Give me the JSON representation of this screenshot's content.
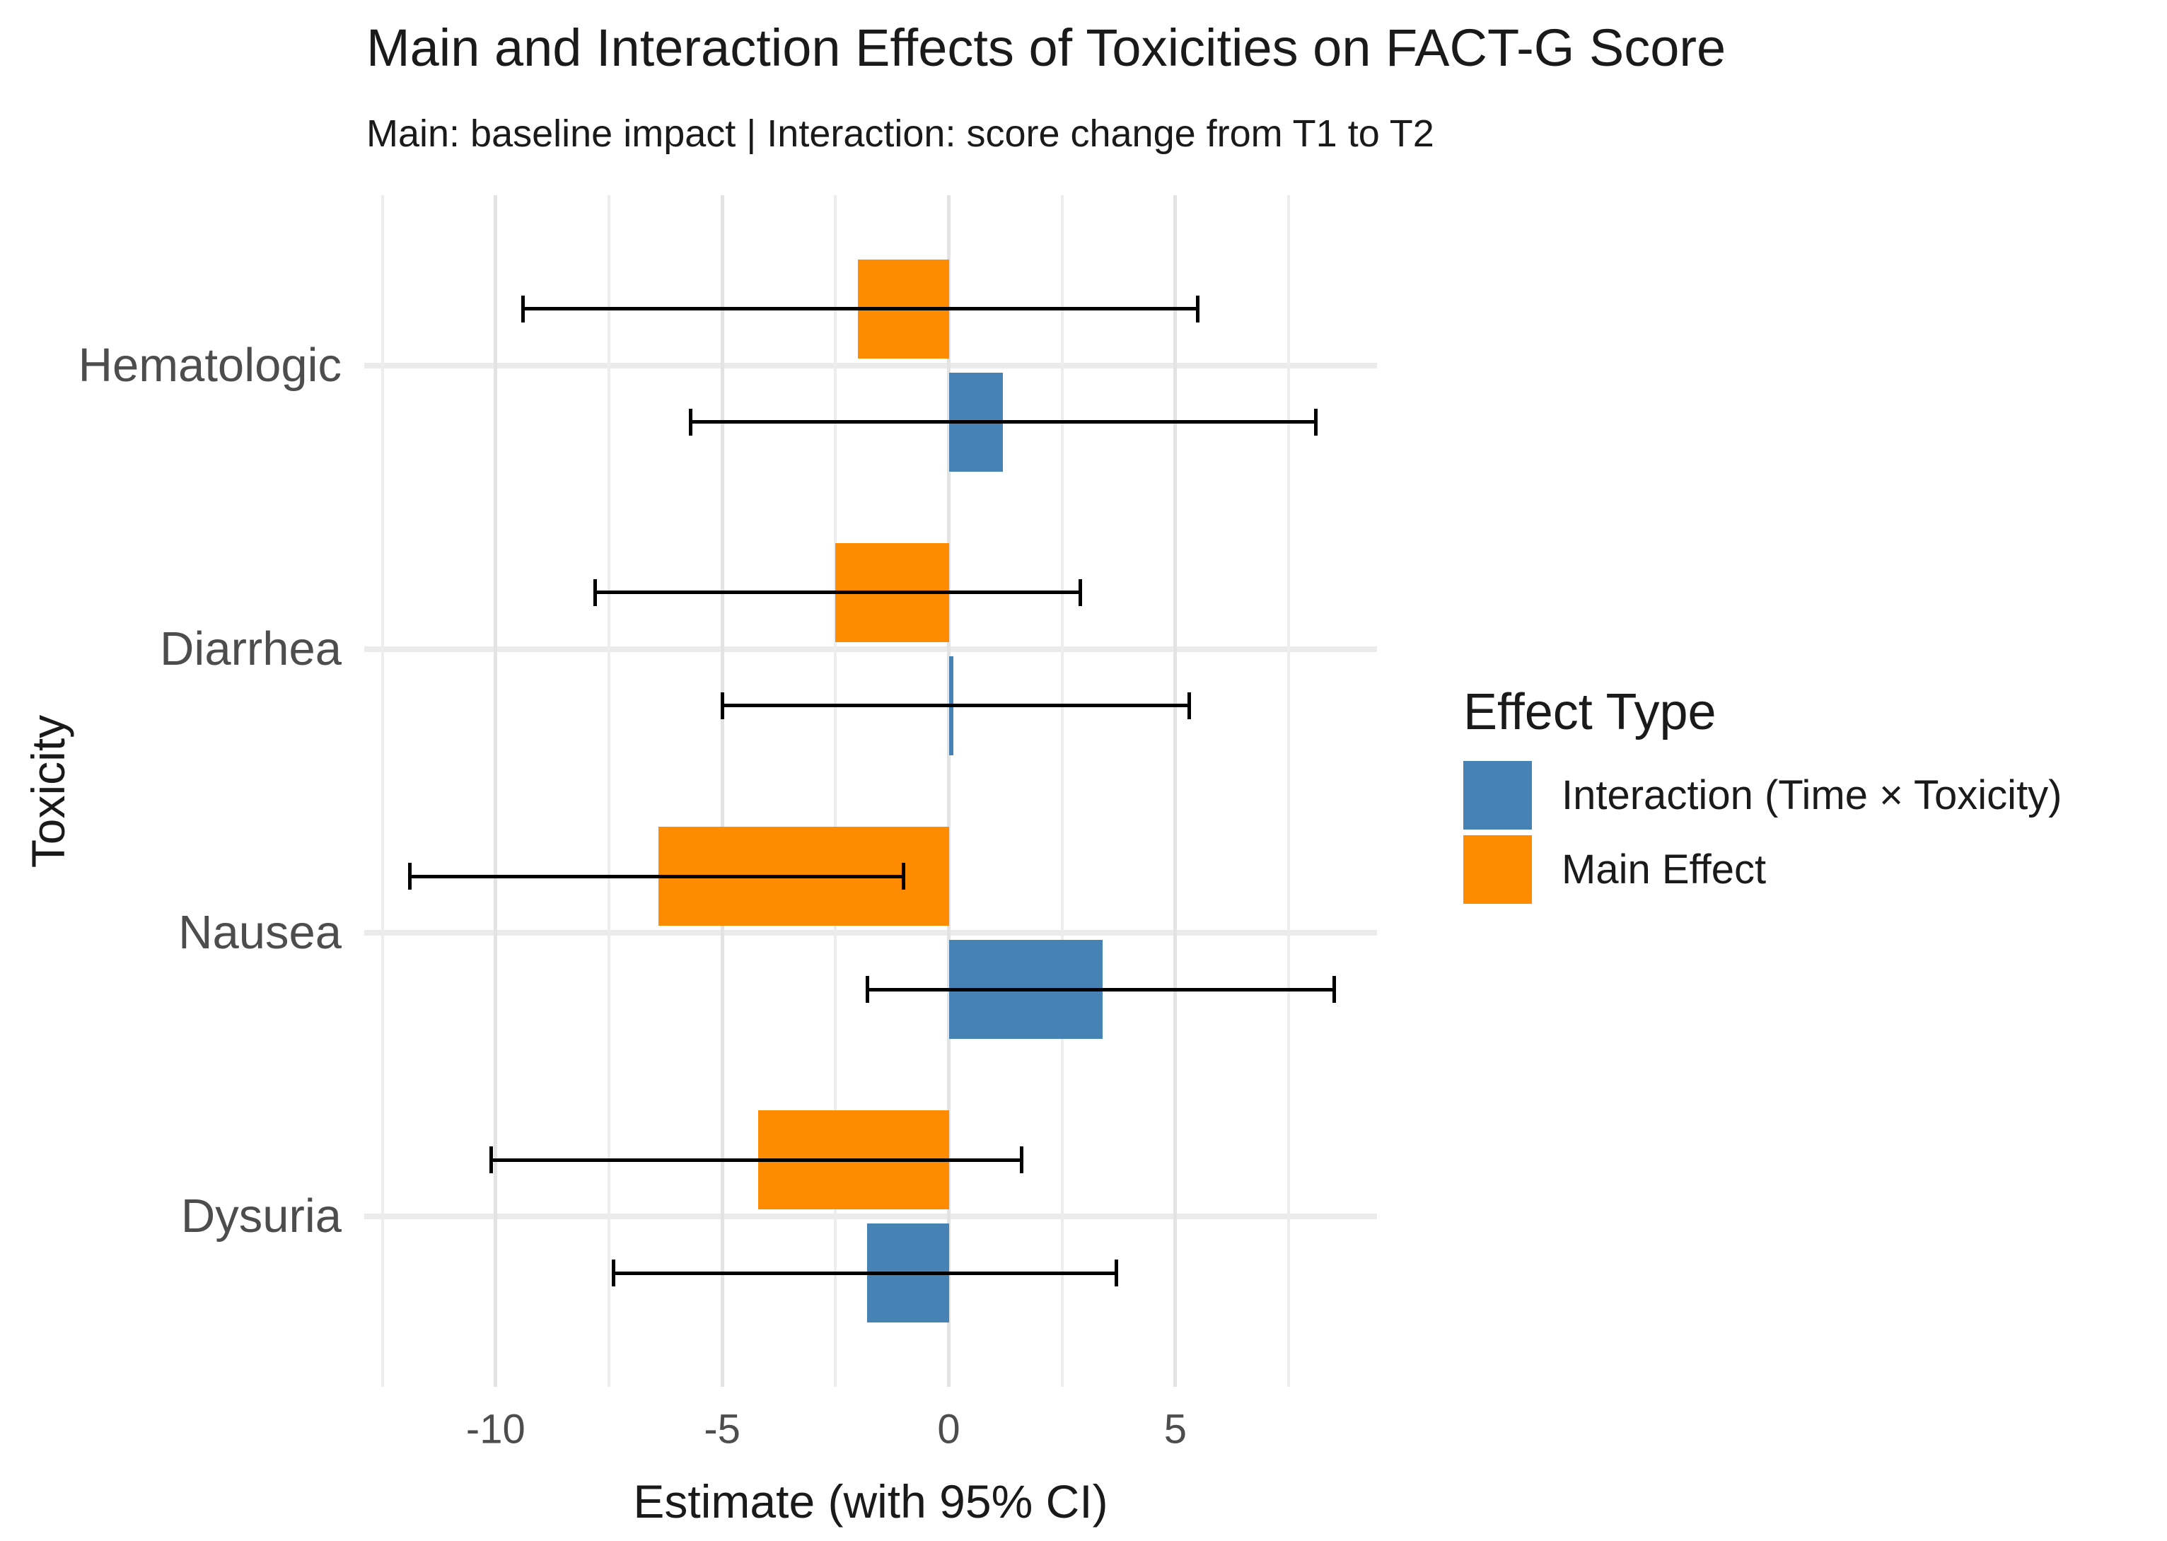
{
  "chart_data": {
    "type": "bar",
    "orientation": "horizontal_grouped_with_error_bars",
    "title": "Main and Interaction Effects of Toxicities on FACT-G Score",
    "subtitle": "Main: baseline impact | Interaction: score change from T1 to T2",
    "categories": [
      "Hematologic",
      "Diarrhea",
      "Nausea",
      "Dysuria"
    ],
    "series": [
      {
        "name": "Main Effect",
        "color": "#FF8C00",
        "values": [
          -2.0,
          -2.5,
          -6.4,
          -4.2
        ],
        "ci_low": [
          -9.4,
          -7.8,
          -11.9,
          -10.1
        ],
        "ci_high": [
          5.5,
          2.9,
          -1.0,
          1.6
        ]
      },
      {
        "name": "Interaction (Time × Toxicity)",
        "color": "#4682B4",
        "values": [
          1.2,
          0.1,
          3.4,
          -1.8
        ],
        "ci_low": [
          -5.7,
          -5.0,
          -1.8,
          -7.4
        ],
        "ci_high": [
          8.1,
          5.3,
          8.5,
          3.7
        ]
      }
    ],
    "xlabel": "Estimate (with 95% CI)",
    "ylabel": "Toxicity",
    "xlim": [
      -12.9,
      9.45
    ],
    "x_major_ticks": [
      -10,
      -5,
      0,
      5
    ],
    "x_minor_ticks": [
      -12.5,
      -7.5,
      -2.5,
      2.5,
      7.5
    ],
    "grid": true,
    "legend": {
      "title": "Effect Type",
      "position": "right",
      "items": [
        {
          "label": "Interaction (Time × Toxicity)",
          "color": "#4682B4"
        },
        {
          "label": "Main Effect",
          "color": "#FF8C00"
        }
      ]
    }
  },
  "colors": {
    "main_effect": "#FF8C00",
    "interaction": "#4682B4",
    "grid_major": "#E3E3E3",
    "grid_minor": "#EDEDED",
    "category_band": "#EBEBEB",
    "axis_text": "#4D4D4D",
    "title_text": "#1A1A1A",
    "errorbar": "#000000",
    "background": "#FFFFFF"
  }
}
